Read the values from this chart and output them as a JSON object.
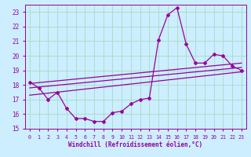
{
  "xlabel": "Windchill (Refroidissement éolien,°C)",
  "bg_color": "#cceeff",
  "line_color": "#990099",
  "grid_color": "#aaddcc",
  "xlim": [
    -0.5,
    23.5
  ],
  "ylim": [
    15,
    23.5
  ],
  "yticks": [
    15,
    16,
    17,
    18,
    19,
    20,
    21,
    22,
    23
  ],
  "xticks": [
    0,
    1,
    2,
    3,
    4,
    5,
    6,
    7,
    8,
    9,
    10,
    11,
    12,
    13,
    14,
    15,
    16,
    17,
    18,
    19,
    20,
    21,
    22,
    23
  ],
  "series": [
    {
      "x": [
        0,
        1,
        2,
        3,
        4,
        5,
        6,
        7,
        8,
        9,
        10,
        11,
        12,
        13,
        14,
        15,
        16,
        17,
        18,
        19,
        20,
        21,
        22,
        23
      ],
      "y": [
        18.2,
        17.8,
        17.0,
        17.5,
        16.4,
        15.7,
        15.7,
        15.5,
        15.5,
        16.1,
        16.2,
        16.7,
        17.0,
        17.1,
        21.1,
        22.8,
        23.3,
        20.8,
        19.5,
        19.5,
        20.1,
        20.0,
        19.3,
        19.0
      ],
      "marker": true
    },
    {
      "x": [
        0,
        23
      ],
      "y": [
        18.1,
        19.5
      ],
      "marker": false
    },
    {
      "x": [
        0,
        23
      ],
      "y": [
        17.8,
        19.2
      ],
      "marker": false
    },
    {
      "x": [
        0,
        23
      ],
      "y": [
        17.3,
        18.9
      ],
      "marker": false
    }
  ]
}
